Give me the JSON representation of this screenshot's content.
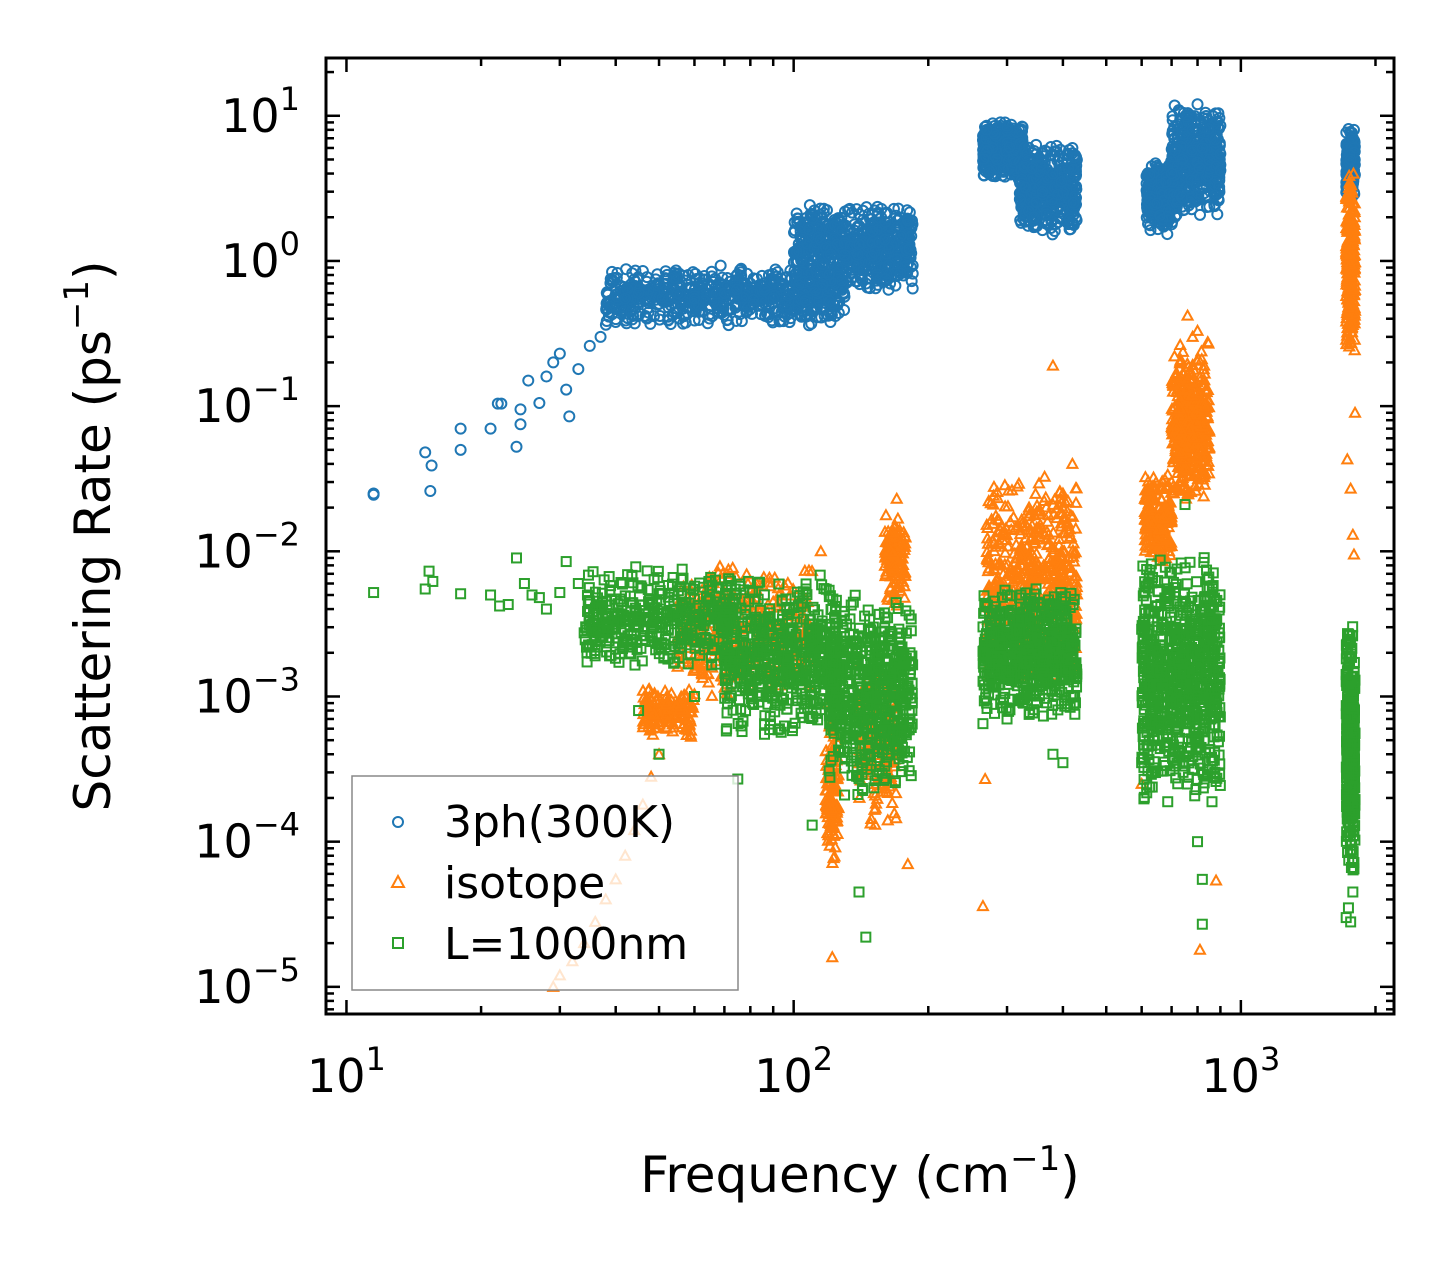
{
  "chart_data": {
    "type": "scatter",
    "title": "",
    "xscale": "log",
    "yscale": "log",
    "xlim": [
      9,
      2200
    ],
    "ylim": [
      6.5e-06,
      25
    ],
    "xlabel": "Frequency (cm",
    "xlabel_sup": "−1",
    "xlabel_end": ")",
    "ylabel": "Scattering Rate (ps",
    "ylabel_sup": "−1",
    "ylabel_end": ")",
    "xticks": [
      {
        "value": 10,
        "base": "10",
        "exp": "1"
      },
      {
        "value": 100,
        "base": "10",
        "exp": "2"
      },
      {
        "value": 1000,
        "base": "10",
        "exp": "3"
      }
    ],
    "yticks": [
      {
        "value": 10,
        "base": "10",
        "exp": "1"
      },
      {
        "value": 1,
        "base": "10",
        "exp": "0"
      },
      {
        "value": 0.1,
        "base": "10",
        "exp": "−1"
      },
      {
        "value": 0.01,
        "base": "10",
        "exp": "−2"
      },
      {
        "value": 0.001,
        "base": "10",
        "exp": "−3"
      },
      {
        "value": 0.0001,
        "base": "10",
        "exp": "−4"
      },
      {
        "value": 1e-05,
        "base": "10",
        "exp": "−5"
      }
    ],
    "legend_position": "bottom-left",
    "series": [
      {
        "name": "3ph(300K)",
        "color": "#1f77b4",
        "marker": "circle",
        "points": [
          [
            11.5,
            0.025
          ],
          [
            11.5,
            0.0245
          ],
          [
            15,
            0.048
          ],
          [
            15.5,
            0.039
          ],
          [
            15.4,
            0.026
          ],
          [
            18,
            0.07
          ],
          [
            18,
            0.05
          ],
          [
            21,
            0.07
          ],
          [
            21.8,
            0.104
          ],
          [
            22.2,
            0.104
          ],
          [
            24,
            0.0525
          ],
          [
            24.5,
            0.095
          ],
          [
            24.5,
            0.075
          ],
          [
            25.5,
            0.15
          ],
          [
            27,
            0.105
          ],
          [
            28,
            0.16
          ],
          [
            29,
            0.2
          ],
          [
            30,
            0.23
          ],
          [
            31,
            0.13
          ],
          [
            31.5,
            0.085
          ],
          [
            33,
            0.18
          ],
          [
            35,
            0.26
          ],
          [
            37,
            0.3
          ],
          [
            40,
            0.38
          ],
          [
            42,
            0.55
          ],
          [
            45,
            0.6
          ],
          [
            50,
            0.7
          ],
          [
            55,
            0.6
          ],
          [
            60,
            0.55
          ],
          [
            70,
            0.6
          ],
          [
            80,
            0.7
          ],
          [
            90,
            0.55
          ],
          [
            100,
            0.6
          ],
          [
            110,
            0.45
          ],
          [
            120,
            0.8
          ],
          [
            130,
            1.1
          ],
          [
            140,
            1.3
          ],
          [
            150,
            1.6
          ],
          [
            160,
            1.4
          ],
          [
            170,
            1.7
          ],
          [
            180,
            1.9
          ],
          [
            270,
            8
          ],
          [
            290,
            9
          ],
          [
            300,
            8.5
          ],
          [
            310,
            5
          ],
          [
            330,
            3.2
          ],
          [
            345,
            2
          ],
          [
            360,
            3
          ],
          [
            380,
            4
          ],
          [
            400,
            5
          ],
          [
            420,
            6
          ],
          [
            620,
            1.8
          ],
          [
            650,
            2.5
          ],
          [
            680,
            3.5
          ],
          [
            700,
            4
          ],
          [
            740,
            5
          ],
          [
            780,
            8
          ],
          [
            800,
            12
          ],
          [
            820,
            6
          ],
          [
            850,
            5
          ],
          [
            880,
            4.5
          ],
          [
            900,
            4.2
          ],
          [
            1740,
            3.5
          ],
          [
            1760,
            5
          ],
          [
            1780,
            7
          ],
          [
            1790,
            8
          ]
        ],
        "clusters": [
          {
            "x": [
              38,
              130
            ],
            "y": [
              0.35,
              0.95
            ],
            "n": 700
          },
          {
            "x": [
              100,
              185
            ],
            "y": [
              0.6,
              2.5
            ],
            "n": 650
          },
          {
            "x": [
              265,
              325
            ],
            "y": [
              3.5,
              9.5
            ],
            "n": 420
          },
          {
            "x": [
              320,
              430
            ],
            "y": [
              1.5,
              6.5
            ],
            "n": 450
          },
          {
            "x": [
              615,
              720
            ],
            "y": [
              1.5,
              5
            ],
            "n": 320
          },
          {
            "x": [
              700,
              900
            ],
            "y": [
              2,
              12
            ],
            "n": 420
          },
          {
            "x": [
              1720,
              1800
            ],
            "y": [
              2.5,
              8.5
            ],
            "n": 160
          }
        ]
      },
      {
        "name": "isotope",
        "color": "#ff7f0e",
        "marker": "triangle",
        "points": [
          [
            29,
            1e-05
          ],
          [
            30,
            1.2e-05
          ],
          [
            32,
            1.5e-05
          ],
          [
            34,
            2e-05
          ],
          [
            36,
            2.8e-05
          ],
          [
            38,
            4e-05
          ],
          [
            40,
            5.5e-05
          ],
          [
            42,
            8e-05
          ],
          [
            44,
            0.00012
          ],
          [
            46,
            0.00018
          ],
          [
            48,
            0.00028
          ],
          [
            50,
            0.0004
          ],
          [
            52,
            0.0006
          ],
          [
            55,
            0.0009
          ],
          [
            60,
            0.0015
          ],
          [
            70,
            0.0022
          ],
          [
            90,
            0.0045
          ],
          [
            115,
            0.01
          ],
          [
            120,
            0.0009
          ],
          [
            122,
            1.6e-05
          ],
          [
            150,
            0.0005
          ],
          [
            165,
            0.01
          ],
          [
            170,
            0.023
          ],
          [
            180,
            7e-05
          ],
          [
            265,
            3.6e-05
          ],
          [
            268,
            0.00027
          ],
          [
            380,
            0.19
          ],
          [
            400,
            0.025
          ],
          [
            420,
            0.04
          ],
          [
            600,
            0.00025
          ],
          [
            620,
            0.02
          ],
          [
            760,
            0.42
          ],
          [
            780,
            0.3
          ],
          [
            800,
            0.33
          ],
          [
            810,
            1.8e-05
          ],
          [
            880,
            5.4e-05
          ],
          [
            1730,
            0.043
          ],
          [
            1760,
            0.027
          ],
          [
            1780,
            0.013
          ],
          [
            1790,
            0.0095
          ],
          [
            1800,
            0.09
          ]
        ],
        "clusters": [
          {
            "x": [
              46,
              60
            ],
            "y": [
              0.0005,
              0.0012
            ],
            "n": 150
          },
          {
            "x": [
              55,
              110
            ],
            "y": [
              0.0009,
              0.009
            ],
            "n": 350
          },
          {
            "x": [
              118,
              126
            ],
            "y": [
              6e-05,
              0.0008
            ],
            "n": 120
          },
          {
            "x": [
              140,
              170
            ],
            "y": [
              0.00012,
              0.002
            ],
            "n": 150
          },
          {
            "x": [
              160,
              178
            ],
            "y": [
              0.004,
              0.02
            ],
            "n": 120
          },
          {
            "x": [
              270,
              430
            ],
            "y": [
              0.0012,
              0.035
            ],
            "n": 520
          },
          {
            "x": [
              610,
              700
            ],
            "y": [
              0.008,
              0.035
            ],
            "n": 200
          },
          {
            "x": [
              700,
              850
            ],
            "y": [
              0.02,
              0.28
            ],
            "n": 420
          },
          {
            "x": [
              1720,
              1800
            ],
            "y": [
              0.2,
              5
            ],
            "n": 260
          }
        ]
      },
      {
        "name": "L=1000nm",
        "color": "#2ca02c",
        "marker": "square",
        "points": [
          [
            11.5,
            0.0052
          ],
          [
            15,
            0.0055
          ],
          [
            15.3,
            0.0073
          ],
          [
            15.6,
            0.0062
          ],
          [
            18,
            0.0051
          ],
          [
            21,
            0.005
          ],
          [
            22,
            0.0042
          ],
          [
            23,
            0.0043
          ],
          [
            24,
            0.009
          ],
          [
            25,
            0.006
          ],
          [
            26,
            0.005
          ],
          [
            27,
            0.0048
          ],
          [
            28,
            0.004
          ],
          [
            30,
            0.0052
          ],
          [
            31,
            0.0085
          ],
          [
            33,
            0.006
          ],
          [
            35,
            0.0045
          ],
          [
            38,
            0.0035
          ],
          [
            45,
            0.0008
          ],
          [
            50,
            0.0004
          ],
          [
            60,
            0.001
          ],
          [
            75,
            0.00027
          ],
          [
            110,
            0.00013
          ],
          [
            140,
            4.5e-05
          ],
          [
            145,
            2.2e-05
          ],
          [
            265,
            0.00065
          ],
          [
            270,
            0.0009
          ],
          [
            300,
            0.0007
          ],
          [
            380,
            0.0004
          ],
          [
            400,
            0.00035
          ],
          [
            600,
            0.00035
          ],
          [
            750,
            0.021
          ],
          [
            800,
            0.0001
          ],
          [
            820,
            5.5e-05
          ],
          [
            820,
            2.7e-05
          ],
          [
            1720,
            3e-05
          ],
          [
            1740,
            3.5e-05
          ],
          [
            1760,
            2.8e-05
          ],
          [
            1780,
            4.5e-05
          ],
          [
            1790,
            6.5e-05
          ]
        ],
        "clusters": [
          {
            "x": [
              34,
              75
            ],
            "y": [
              0.0015,
              0.008
            ],
            "n": 400
          },
          {
            "x": [
              70,
              125
            ],
            "y": [
              0.0005,
              0.007
            ],
            "n": 550
          },
          {
            "x": [
              120,
              185
            ],
            "y": [
              0.0002,
              0.0055
            ],
            "n": 550
          },
          {
            "x": [
              265,
              430
            ],
            "y": [
              0.0007,
              0.006
            ],
            "n": 650
          },
          {
            "x": [
              600,
              900
            ],
            "y": [
              0.00018,
              0.01
            ],
            "n": 800
          },
          {
            "x": [
              1720,
              1800
            ],
            "y": [
              6e-05,
              0.0035
            ],
            "n": 350
          }
        ]
      }
    ]
  }
}
